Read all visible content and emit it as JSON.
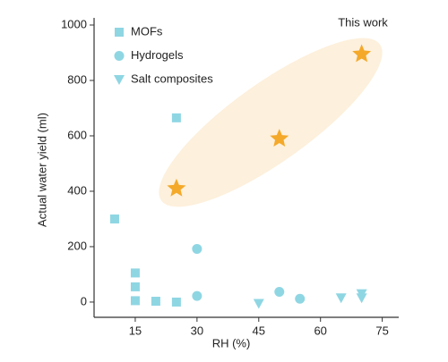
{
  "chart_data": {
    "type": "scatter",
    "x_label": "RH (%)",
    "y_label": "Actual water yield (ml)",
    "xlim": [
      5,
      79
    ],
    "ylim": [
      -55,
      1000
    ],
    "xticks": [
      15,
      30,
      45,
      60,
      75
    ],
    "yticks": [
      0,
      200,
      400,
      600,
      800,
      1000
    ],
    "legend": "upper left",
    "series": [
      {
        "name": "MOFs",
        "color": "#8fd6e3",
        "marker": "square",
        "x": [
          10,
          15,
          15,
          15,
          20,
          25,
          25
        ],
        "y": [
          300,
          105,
          55,
          5,
          3,
          665,
          0
        ]
      },
      {
        "name": "Hydrogels",
        "color": "#8fd6e3",
        "marker": "circle",
        "x": [
          30,
          30,
          50,
          55
        ],
        "y": [
          192,
          22,
          37,
          12
        ]
      },
      {
        "name": "Salt composites",
        "color": "#8fd6e3",
        "marker": "triangle-down",
        "x": [
          45,
          65,
          70,
          70
        ],
        "y": [
          -5,
          15,
          30,
          15
        ]
      },
      {
        "name": "This work",
        "color": "#f4a92a",
        "marker": "star",
        "x": [
          25,
          50,
          70
        ],
        "y": [
          410,
          590,
          895
        ]
      }
    ]
  }
}
